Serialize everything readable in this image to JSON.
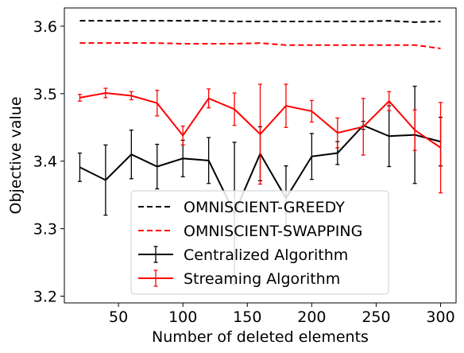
{
  "chart_data": {
    "type": "line",
    "title": "",
    "xlabel": "Number of deleted elements",
    "ylabel": "Objective value",
    "xlim": [
      8,
      312
    ],
    "ylim": [
      3.19,
      3.627
    ],
    "xticks": [
      50,
      100,
      150,
      200,
      250,
      300
    ],
    "xtick_labels": [
      "50",
      "100",
      "150",
      "200",
      "250",
      "300"
    ],
    "yticks": [
      3.2,
      3.3,
      3.4,
      3.5,
      3.6
    ],
    "ytick_labels": [
      "3.2",
      "3.3",
      "3.4",
      "3.5",
      "3.6"
    ],
    "grid": false,
    "legend_position": "lower-center",
    "x": [
      20,
      40,
      60,
      80,
      100,
      120,
      140,
      160,
      180,
      200,
      220,
      240,
      260,
      280,
      300
    ],
    "series": [
      {
        "name": "OMNISCIENT-GREEDY",
        "color": "#000000",
        "style": "dashed",
        "values": [
          3.608,
          3.608,
          3.608,
          3.608,
          3.608,
          3.608,
          3.607,
          3.607,
          3.607,
          3.607,
          3.607,
          3.607,
          3.608,
          3.606,
          3.607
        ]
      },
      {
        "name": "OMNISCIENT-SWAPPING",
        "color": "#ff0000",
        "style": "dashed",
        "values": [
          3.575,
          3.575,
          3.575,
          3.575,
          3.574,
          3.574,
          3.574,
          3.575,
          3.572,
          3.572,
          3.572,
          3.572,
          3.572,
          3.572,
          3.567
        ]
      },
      {
        "name": "Centralized Algorithm",
        "color": "#000000",
        "style": "solid",
        "errorbars": true,
        "values": [
          3.391,
          3.372,
          3.41,
          3.392,
          3.404,
          3.401,
          3.323,
          3.411,
          3.345,
          3.407,
          3.412,
          3.453,
          3.437,
          3.439,
          3.429
        ],
        "errors": [
          0.021,
          0.052,
          0.036,
          0.033,
          0.027,
          0.034,
          0.105,
          0.04,
          0.048,
          0.034,
          0.017,
          0.006,
          0.045,
          0.072,
          0.036
        ]
      },
      {
        "name": "Streaming Algorithm",
        "color": "#ff0000",
        "style": "solid",
        "errorbars": true,
        "values": [
          3.494,
          3.501,
          3.497,
          3.486,
          3.438,
          3.493,
          3.477,
          3.44,
          3.482,
          3.474,
          3.442,
          3.451,
          3.489,
          3.446,
          3.42
        ],
        "errors": [
          0.005,
          0.007,
          0.006,
          0.019,
          0.014,
          0.014,
          0.024,
          0.074,
          0.032,
          0.016,
          0.022,
          0.042,
          0.014,
          0.03,
          0.067
        ]
      }
    ]
  }
}
